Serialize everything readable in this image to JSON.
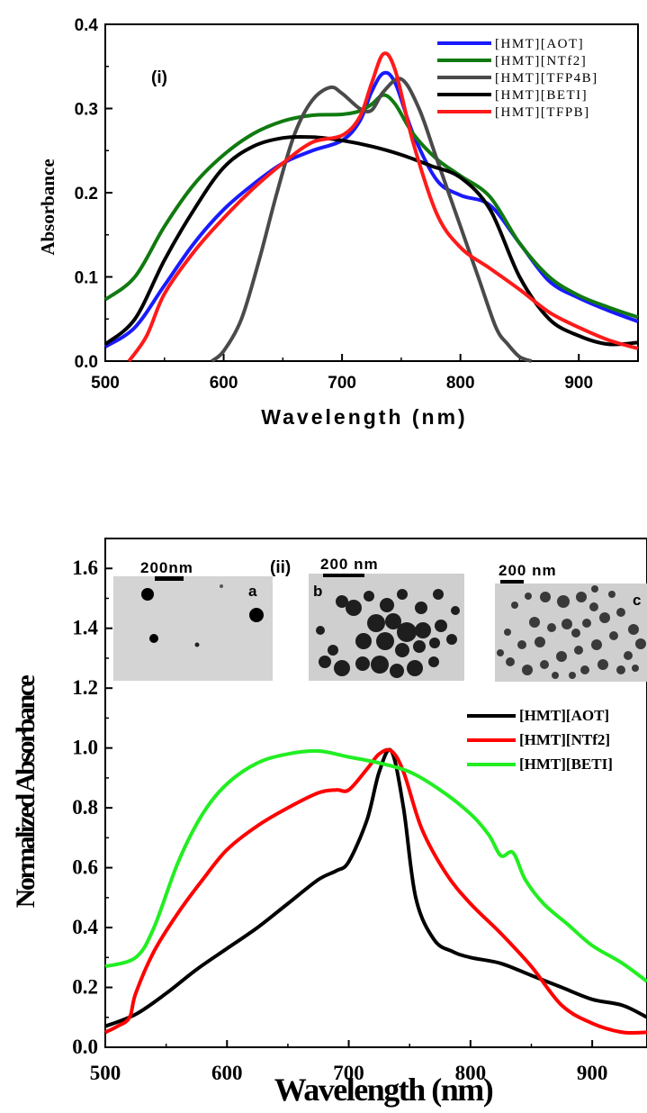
{
  "chart_data": [
    {
      "type": "line",
      "panel_label": "(i)",
      "xlabel": "Wavelength (nm)",
      "ylabel": "Absorbance",
      "xlim": [
        500,
        950
      ],
      "ylim": [
        0.0,
        0.4
      ],
      "xticks": [
        "500",
        "600",
        "700",
        "800",
        "900"
      ],
      "yticks": [
        "0.0",
        "0.1",
        "0.2",
        "0.3",
        "0.4"
      ],
      "legend_position": "top-right",
      "series": [
        {
          "name": "[HMT][AOT]",
          "color": "#1a1aff",
          "x": [
            500,
            525,
            550,
            575,
            600,
            625,
            650,
            675,
            700,
            715,
            725,
            735,
            745,
            760,
            780,
            800,
            825,
            850,
            875,
            900,
            925,
            950
          ],
          "y": [
            0.017,
            0.04,
            0.09,
            0.14,
            0.18,
            0.21,
            0.235,
            0.25,
            0.262,
            0.285,
            0.32,
            0.342,
            0.33,
            0.27,
            0.215,
            0.197,
            0.185,
            0.14,
            0.095,
            0.075,
            0.06,
            0.047
          ]
        },
        {
          "name": "[HMT][NTf2]",
          "color": "#107a10",
          "x": [
            500,
            525,
            550,
            575,
            600,
            625,
            650,
            675,
            700,
            715,
            725,
            735,
            745,
            760,
            780,
            800,
            825,
            850,
            875,
            900,
            925,
            950
          ],
          "y": [
            0.073,
            0.1,
            0.16,
            0.21,
            0.245,
            0.27,
            0.285,
            0.292,
            0.293,
            0.297,
            0.305,
            0.316,
            0.305,
            0.27,
            0.24,
            0.22,
            0.195,
            0.14,
            0.1,
            0.078,
            0.064,
            0.052
          ]
        },
        {
          "name": "[HMT][TFP4B]",
          "color": "#4a4a4a",
          "x": [
            590,
            600,
            615,
            630,
            645,
            660,
            675,
            690,
            700,
            715,
            725,
            735,
            750,
            765,
            780,
            800,
            815,
            830,
            840,
            850,
            860
          ],
          "y": [
            0.0,
            0.012,
            0.05,
            0.12,
            0.2,
            0.27,
            0.31,
            0.325,
            0.318,
            0.3,
            0.298,
            0.32,
            0.335,
            0.3,
            0.24,
            0.16,
            0.1,
            0.04,
            0.02,
            0.005,
            0.0
          ]
        },
        {
          "name": "[HMT][BETI]",
          "color": "#000000",
          "x": [
            500,
            525,
            550,
            575,
            600,
            625,
            650,
            675,
            700,
            725,
            750,
            775,
            800,
            825,
            850,
            875,
            900,
            925,
            950
          ],
          "y": [
            0.02,
            0.05,
            0.12,
            0.18,
            0.23,
            0.255,
            0.265,
            0.266,
            0.262,
            0.255,
            0.245,
            0.232,
            0.218,
            0.18,
            0.1,
            0.05,
            0.03,
            0.02,
            0.022
          ]
        },
        {
          "name": "[HMT][TFPB]",
          "color": "#ff1a1a",
          "x": [
            520,
            535,
            550,
            575,
            600,
            625,
            650,
            675,
            700,
            715,
            725,
            735,
            745,
            760,
            780,
            800,
            825,
            850,
            875,
            900,
            925,
            950
          ],
          "y": [
            0.0,
            0.03,
            0.08,
            0.13,
            0.17,
            0.205,
            0.235,
            0.26,
            0.268,
            0.29,
            0.33,
            0.365,
            0.345,
            0.26,
            0.175,
            0.135,
            0.11,
            0.085,
            0.058,
            0.04,
            0.025,
            0.015
          ]
        }
      ]
    },
    {
      "type": "line",
      "panel_label": "(ii)",
      "xlabel": "Wavelength (nm)",
      "ylabel": "Normalized Absorbance",
      "xlim": [
        500,
        945
      ],
      "ylim": [
        0.0,
        1.7
      ],
      "xticks": [
        "500",
        "600",
        "700",
        "800",
        "900"
      ],
      "yticks": [
        "0.0",
        "0.2",
        "0.4",
        "0.6",
        "0.8",
        "1.0",
        "1.2",
        "1.4",
        "1.6"
      ],
      "legend_position": "right",
      "series": [
        {
          "name": "[HMT][AOT]",
          "color": "#000000",
          "x": [
            500,
            525,
            550,
            575,
            600,
            625,
            650,
            675,
            690,
            700,
            715,
            725,
            735,
            745,
            755,
            770,
            785,
            800,
            825,
            850,
            875,
            900,
            925,
            945
          ],
          "y": [
            0.07,
            0.11,
            0.18,
            0.26,
            0.33,
            0.4,
            0.48,
            0.56,
            0.59,
            0.62,
            0.76,
            0.92,
            0.99,
            0.8,
            0.5,
            0.36,
            0.32,
            0.3,
            0.28,
            0.24,
            0.2,
            0.16,
            0.14,
            0.1
          ]
        },
        {
          "name": "[HMT][NTf2]",
          "color": "#ff0000",
          "x": [
            500,
            510,
            520,
            525,
            540,
            560,
            580,
            600,
            625,
            650,
            675,
            690,
            700,
            715,
            725,
            735,
            745,
            760,
            780,
            800,
            825,
            850,
            875,
            900,
            925,
            945
          ],
          "y": [
            0.05,
            0.07,
            0.1,
            0.18,
            0.32,
            0.45,
            0.56,
            0.66,
            0.74,
            0.8,
            0.85,
            0.86,
            0.86,
            0.93,
            0.98,
            0.99,
            0.92,
            0.73,
            0.58,
            0.48,
            0.38,
            0.27,
            0.14,
            0.08,
            0.05,
            0.05
          ]
        },
        {
          "name": "[HMT][BETI]",
          "color": "#22ee22",
          "x": [
            500,
            525,
            540,
            560,
            580,
            600,
            625,
            650,
            675,
            700,
            725,
            750,
            775,
            800,
            815,
            825,
            835,
            845,
            860,
            880,
            900,
            925,
            945
          ],
          "y": [
            0.27,
            0.3,
            0.4,
            0.62,
            0.78,
            0.88,
            0.95,
            0.98,
            0.99,
            0.97,
            0.95,
            0.92,
            0.86,
            0.78,
            0.71,
            0.64,
            0.65,
            0.56,
            0.48,
            0.41,
            0.34,
            0.28,
            0.22
          ]
        }
      ],
      "insets": [
        {
          "label": "a",
          "scale_text": "200nm",
          "scale_text_display": "200nm"
        },
        {
          "label": "b",
          "scale_text": "200 nm"
        },
        {
          "label": "c",
          "scale_text": "200 nm"
        }
      ]
    }
  ]
}
